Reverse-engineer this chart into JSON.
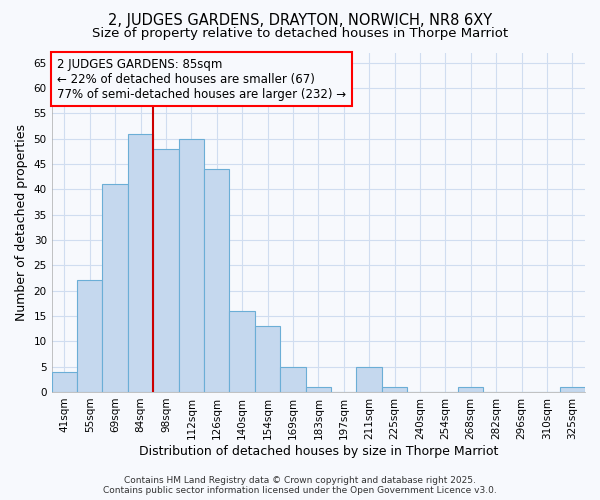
{
  "title_line1": "2, JUDGES GARDENS, DRAYTON, NORWICH, NR8 6XY",
  "title_line2": "Size of property relative to detached houses in Thorpe Marriot",
  "xlabel": "Distribution of detached houses by size in Thorpe Marriot",
  "ylabel": "Number of detached properties",
  "categories": [
    "41sqm",
    "55sqm",
    "69sqm",
    "84sqm",
    "98sqm",
    "112sqm",
    "126sqm",
    "140sqm",
    "154sqm",
    "169sqm",
    "183sqm",
    "197sqm",
    "211sqm",
    "225sqm",
    "240sqm",
    "254sqm",
    "268sqm",
    "282sqm",
    "296sqm",
    "310sqm",
    "325sqm"
  ],
  "values": [
    4,
    22,
    41,
    51,
    48,
    50,
    44,
    16,
    13,
    5,
    1,
    0,
    5,
    1,
    0,
    0,
    1,
    0,
    0,
    0,
    1
  ],
  "bar_color": "#c5d8ee",
  "bar_edge_color": "#6baed6",
  "ylim": [
    0,
    67
  ],
  "yticks": [
    0,
    5,
    10,
    15,
    20,
    25,
    30,
    35,
    40,
    45,
    50,
    55,
    60,
    65
  ],
  "annotation_line1": "2 JUDGES GARDENS: 85sqm",
  "annotation_line2": "← 22% of detached houses are smaller (67)",
  "annotation_line3": "77% of semi-detached houses are larger (232) →",
  "vline_position": 3.5,
  "footer_line1": "Contains HM Land Registry data © Crown copyright and database right 2025.",
  "footer_line2": "Contains public sector information licensed under the Open Government Licence v3.0.",
  "background_color": "#f7f9fd",
  "grid_color": "#d0ddf0",
  "title_fontsize": 10.5,
  "subtitle_fontsize": 9.5,
  "axis_label_fontsize": 9,
  "tick_fontsize": 7.5,
  "annotation_fontsize": 8.5,
  "footer_fontsize": 6.5,
  "red_line_color": "#cc0000"
}
